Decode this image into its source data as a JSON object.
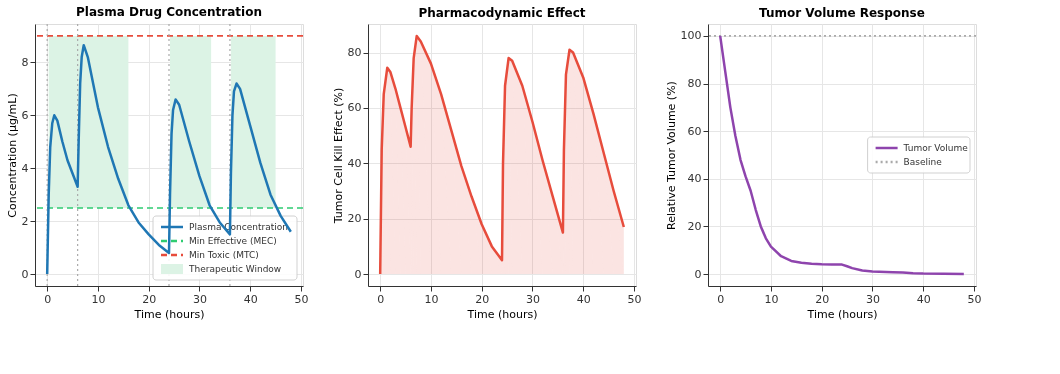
{
  "chart_data": [
    {
      "type": "line",
      "title": "Plasma Drug Concentration",
      "xlabel": "Time (hours)",
      "ylabel": "Concentration (μg/mL)",
      "x": [
        0,
        0.3,
        0.6,
        1,
        1.4,
        2,
        3,
        4,
        5,
        6,
        6.2,
        6.5,
        6.8,
        7.2,
        8,
        10,
        12,
        14,
        16,
        18,
        20,
        22,
        24,
        24.2,
        24.5,
        24.8,
        25.3,
        26,
        28,
        30,
        32,
        34,
        36,
        36.2,
        36.5,
        36.8,
        37.3,
        38,
        40,
        42,
        44,
        46,
        48
      ],
      "series": [
        {
          "name": "Plasma Concentration",
          "color": "#1f77b4",
          "values": [
            0,
            3,
            4.8,
            5.7,
            6.0,
            5.8,
            5.0,
            4.3,
            3.8,
            3.3,
            5,
            7.2,
            8.2,
            8.65,
            8.2,
            6.3,
            4.8,
            3.6,
            2.6,
            1.95,
            1.5,
            1.1,
            0.8,
            3,
            5.3,
            6.2,
            6.6,
            6.4,
            5.0,
            3.7,
            2.6,
            1.95,
            1.5,
            3.8,
            6,
            6.9,
            7.2,
            7.0,
            5.6,
            4.2,
            3.0,
            2.2,
            1.6
          ]
        }
      ],
      "xlim": [
        -2.4,
        50.4
      ],
      "ylim": [
        -0.45,
        9.45
      ],
      "xticks": [
        0,
        10,
        20,
        30,
        40,
        50
      ],
      "yticks": [
        0,
        2,
        4,
        6,
        8
      ],
      "ref_lines": [
        {
          "axis": "y",
          "value": 2.5,
          "label": "Min Effective (MEC)",
          "color": "#2ecc71",
          "line_style": "dashed"
        },
        {
          "axis": "y",
          "value": 9,
          "label": "Min Toxic (MTC)",
          "color": "#e74c3c",
          "line_style": "dashed"
        },
        {
          "axis": "x",
          "value": 0,
          "color": "#aaaaaa",
          "line_style": "dotted"
        },
        {
          "axis": "x",
          "value": 6,
          "color": "#aaaaaa",
          "line_style": "dotted"
        },
        {
          "axis": "x",
          "value": 24,
          "color": "#aaaaaa",
          "line_style": "dotted"
        },
        {
          "axis": "x",
          "value": 36,
          "color": "#aaaaaa",
          "line_style": "dotted"
        }
      ],
      "bands": [
        {
          "axis": "x",
          "from": 0.3,
          "to": 16,
          "label": "Therapeutic Window",
          "color": "#dcf3e5"
        },
        {
          "axis": "x",
          "from": 24.2,
          "to": 32.3,
          "color": "#dcf3e5"
        },
        {
          "axis": "x",
          "from": 36.2,
          "to": 45,
          "color": "#dcf3e5"
        }
      ],
      "grid": true,
      "legend": "bottom right"
    },
    {
      "type": "area",
      "title": "Pharmacodynamic Effect",
      "xlabel": "Time (hours)",
      "ylabel": "Tumor Cell Kill Effect (%)",
      "x": [
        0,
        0.3,
        0.7,
        1.4,
        2,
        3,
        4,
        5,
        6,
        6.2,
        6.6,
        7.2,
        8,
        10,
        12,
        14,
        16,
        18,
        20,
        22,
        24,
        24.2,
        24.6,
        25.3,
        26,
        28,
        30,
        32,
        34,
        36,
        36.2,
        36.6,
        37.3,
        38,
        40,
        42,
        44,
        46,
        48
      ],
      "series": [
        {
          "color": "#e74c3c",
          "values": [
            0,
            45,
            65,
            74.5,
            73,
            67,
            60,
            53,
            46,
            60,
            78,
            86,
            84,
            76,
            65,
            52,
            39,
            28,
            18,
            10,
            5,
            40,
            68,
            78,
            77,
            68,
            55,
            41,
            28,
            15,
            45,
            72,
            81,
            80,
            71,
            58,
            44,
            30,
            17
          ]
        }
      ],
      "xlim": [
        -2.4,
        50.4
      ],
      "ylim": [
        -4.3,
        90.3
      ],
      "xticks": [
        0,
        10,
        20,
        30,
        40,
        50
      ],
      "yticks": [
        0,
        20,
        40,
        60,
        80
      ],
      "grid": true
    },
    {
      "type": "line",
      "title": "Tumor Volume Response",
      "xlabel": "Time (hours)",
      "ylabel": "Relative Tumor Volume (%)",
      "x": [
        0,
        1,
        2,
        3,
        4,
        5,
        6,
        7,
        8,
        9,
        10,
        12,
        14,
        16,
        18,
        20,
        22,
        24,
        25,
        26,
        28,
        30,
        34,
        36,
        38,
        40,
        44,
        48
      ],
      "series": [
        {
          "name": "Tumor Volume",
          "color": "#8e44ad",
          "values": [
            100,
            85,
            70,
            58,
            48,
            41,
            35,
            27,
            20,
            15,
            11.5,
            7.5,
            5.5,
            4.8,
            4.3,
            4.1,
            4,
            4,
            3.3,
            2.5,
            1.5,
            1.1,
            0.8,
            0.7,
            0.4,
            0.2,
            0.1,
            0
          ]
        }
      ],
      "xlim": [
        -2.4,
        50.4
      ],
      "ylim": [
        -5,
        105
      ],
      "xticks": [
        0,
        10,
        20,
        30,
        40,
        50
      ],
      "yticks": [
        0,
        20,
        40,
        60,
        80,
        100
      ],
      "ref_lines": [
        {
          "axis": "y",
          "value": 100,
          "label": "Baseline",
          "color": "#aaaaaa",
          "line_style": "dotted"
        }
      ],
      "grid": true,
      "legend": "right"
    }
  ]
}
